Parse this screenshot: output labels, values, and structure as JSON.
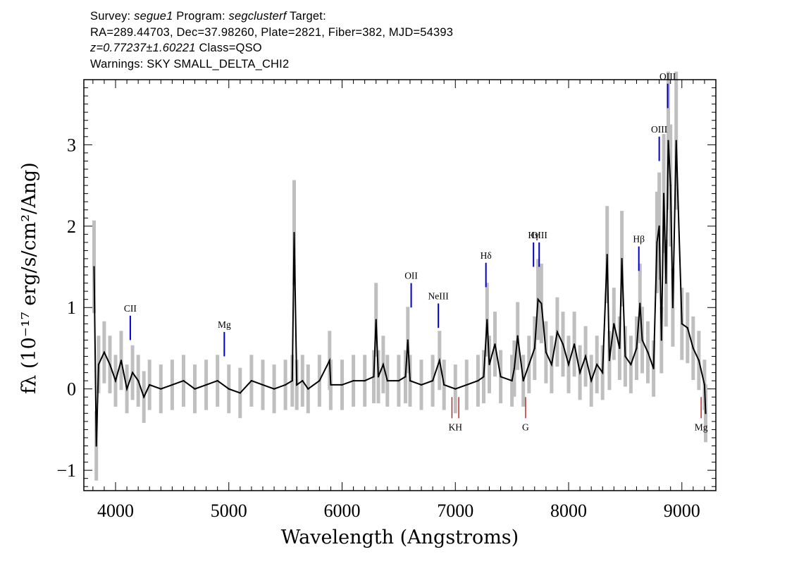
{
  "header": {
    "line1": {
      "survey_label": "Survey:",
      "survey": "segue1",
      "program_label": "Program:",
      "program": "segclusterf",
      "target_label": "Target:"
    },
    "line2": "RA=289.44703, Dec=37.98260, Plate=2821, Fiber=382, MJD=54393",
    "line3": {
      "redshift": "z=0.77237±1.60221",
      "class": "Class=QSO"
    },
    "line4": "Warnings: SKY SMALL_DELTA_CHI2"
  },
  "chart_data": {
    "type": "line",
    "xlabel": "Wavelength (Angstroms)",
    "ylabel": "fλ (10⁻¹⁷ erg/s/cm²/Ang)",
    "xlim": [
      3720,
      9300
    ],
    "ylim": [
      -1.25,
      3.8
    ],
    "x_ticks": [
      4000,
      5000,
      6000,
      7000,
      8000,
      9000
    ],
    "y_ticks": [
      -1,
      0,
      1,
      2,
      3
    ],
    "grid": false,
    "colors": {
      "flux": "#000000",
      "error": "#bfbfbf",
      "emission_marker": "#0000cc",
      "absorption_marker": "#cc0000"
    },
    "series": [
      {
        "x": [
          3810,
          3830,
          3850,
          3900,
          3950,
          4000,
          4050,
          4100,
          4150,
          4200,
          4250,
          4300,
          4400,
          4500,
          4600,
          4700,
          4800,
          4900,
          5000,
          5100,
          5200,
          5300,
          5400,
          5500,
          5560,
          5577,
          5600,
          5650,
          5700,
          5800,
          5890,
          5900,
          6000,
          6100,
          6200,
          6280,
          6300,
          6320,
          6363,
          6400,
          6500,
          6560,
          6580,
          6600,
          6700,
          6800,
          6860,
          6900,
          7000,
          7100,
          7200,
          7250,
          7280,
          7300,
          7350,
          7400,
          7500,
          7520,
          7550,
          7600,
          7650,
          7700,
          7730,
          7760,
          7800,
          7850,
          7900,
          7950,
          8000,
          8050,
          8100,
          8150,
          8200,
          8250,
          8300,
          8340,
          8360,
          8400,
          8450,
          8470,
          8500,
          8550,
          8600,
          8630,
          8650,
          8700,
          8750,
          8780,
          8800,
          8820,
          8840,
          8860,
          8880,
          8900,
          8920,
          8950,
          9000,
          9050,
          9100,
          9150,
          9200,
          9210
        ],
        "values": [
          1.5,
          -0.7,
          0.3,
          0.45,
          0.3,
          0.1,
          0.35,
          0.0,
          0.2,
          0.1,
          -0.1,
          0.05,
          0.0,
          0.05,
          0.1,
          0.0,
          0.05,
          0.1,
          0.0,
          -0.05,
          0.1,
          0.05,
          0.0,
          0.05,
          0.1,
          1.92,
          0.05,
          0.1,
          0.0,
          0.1,
          0.35,
          0.05,
          0.05,
          0.1,
          0.1,
          0.15,
          0.85,
          0.15,
          0.3,
          0.1,
          0.1,
          0.15,
          0.6,
          0.1,
          0.05,
          0.1,
          0.35,
          0.05,
          0.0,
          0.05,
          0.1,
          0.15,
          0.85,
          0.3,
          0.55,
          0.15,
          0.1,
          0.25,
          0.65,
          0.1,
          0.3,
          0.5,
          1.1,
          1.05,
          0.45,
          0.3,
          0.7,
          0.55,
          0.3,
          0.55,
          0.2,
          0.4,
          0.1,
          0.3,
          0.2,
          1.65,
          0.35,
          0.8,
          0.5,
          1.6,
          0.4,
          0.3,
          0.5,
          1.05,
          0.6,
          0.45,
          0.25,
          1.8,
          2.0,
          0.6,
          2.4,
          1.3,
          3.05,
          2.5,
          1.0,
          3.05,
          0.8,
          0.75,
          0.5,
          0.35,
          0.05,
          -0.3
        ]
      }
    ],
    "emission_lines": [
      {
        "label": "CII",
        "x": 4130
      },
      {
        "label": "Mg",
        "x": 4960
      },
      {
        "label": "OII",
        "x": 6610
      },
      {
        "label": "NeIII",
        "x": 6850
      },
      {
        "label": "Hδ",
        "x": 7270
      },
      {
        "label": "Hγ",
        "x": 7690
      },
      {
        "label": "OIII",
        "x": 7740
      },
      {
        "label": "Hβ",
        "x": 8620
      },
      {
        "label": "OIII",
        "x": 8800
      },
      {
        "label": "OIII",
        "x": 8875
      }
    ],
    "absorption_lines": [
      {
        "label": "K",
        "x": 6970
      },
      {
        "label": "H",
        "x": 7030
      },
      {
        "label": "G",
        "x": 7620
      },
      {
        "label": "Mg",
        "x": 9170
      }
    ]
  }
}
